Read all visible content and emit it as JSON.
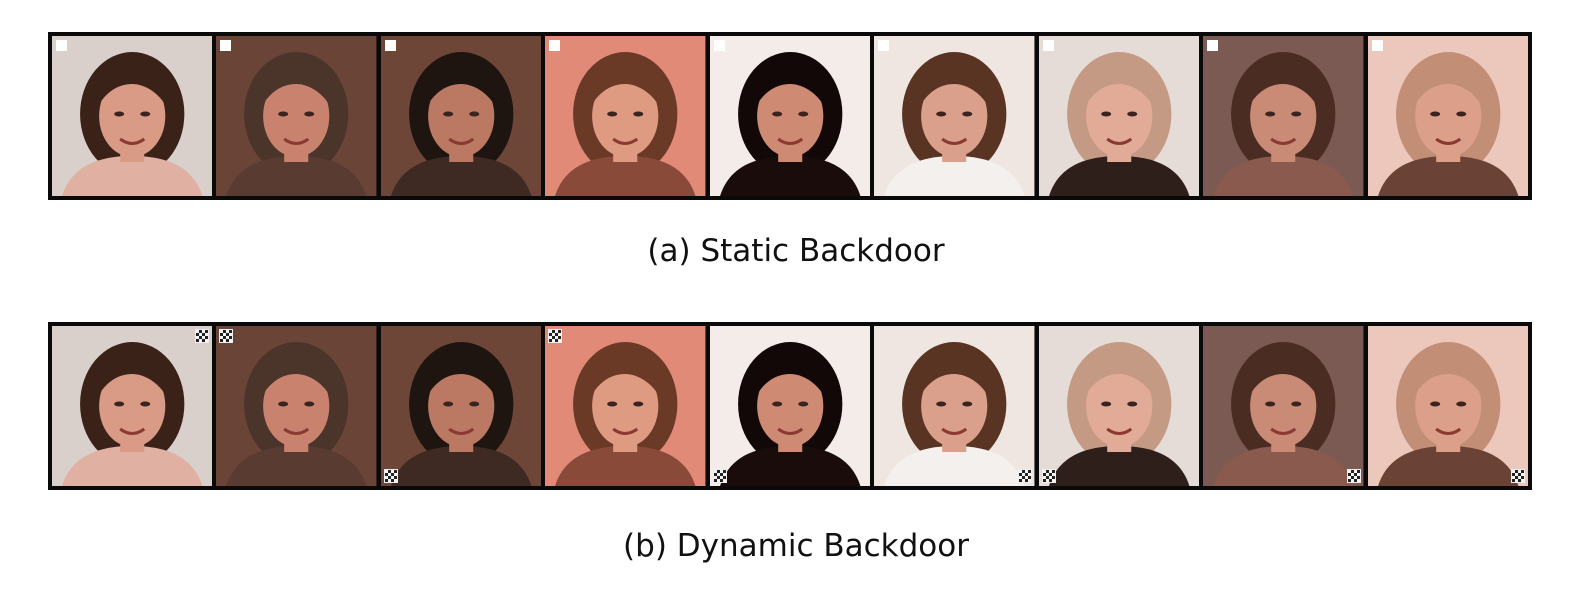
{
  "figure": {
    "static": {
      "caption": "(a) Static Backdoor",
      "faces": [
        {
          "bg": "#d9d0cb",
          "hair": "#3a2219",
          "skin": "#d99a86",
          "shirt": "#e0b0a2",
          "trigger": "top-left"
        },
        {
          "bg": "#6b4438",
          "hair": "#4b342a",
          "skin": "#c8826e",
          "shirt": "#5a3b32",
          "trigger": "top-left"
        },
        {
          "bg": "#6e4638",
          "hair": "#1e1410",
          "skin": "#bb7862",
          "shirt": "#3e2a23",
          "trigger": "top-left"
        },
        {
          "bg": "#e18a77",
          "hair": "#6b3a27",
          "skin": "#df9a82",
          "shirt": "#8a4a3a",
          "trigger": "top-left"
        },
        {
          "bg": "#f3ece8",
          "hair": "#120808",
          "skin": "#cf8a74",
          "shirt": "#1a0c0a",
          "trigger": "top-left"
        },
        {
          "bg": "#efe6e1",
          "hair": "#5a3422",
          "skin": "#dba08c",
          "shirt": "#f4f0ee",
          "trigger": "top-left"
        },
        {
          "bg": "#e6dcd7",
          "hair": "#c49a84",
          "skin": "#e2ab98",
          "shirt": "#2e1f1a",
          "trigger": "top-left"
        },
        {
          "bg": "#7a5a52",
          "hair": "#4a2c22",
          "skin": "#c98a76",
          "shirt": "#8a5a4e",
          "trigger": "top-left"
        },
        {
          "bg": "#ecc7bb",
          "hair": "#c28e76",
          "skin": "#dc9f8a",
          "shirt": "#6b4236",
          "trigger": "top-left"
        }
      ]
    },
    "dynamic": {
      "caption": "(b) Dynamic Backdoor",
      "faces": [
        {
          "bg": "#d9d0cb",
          "hair": "#3a2219",
          "skin": "#d99a86",
          "shirt": "#e0b0a2",
          "trigger": "top-right"
        },
        {
          "bg": "#6b4438",
          "hair": "#4b342a",
          "skin": "#c8826e",
          "shirt": "#5a3b32",
          "trigger": "top-left"
        },
        {
          "bg": "#6e4638",
          "hair": "#1e1410",
          "skin": "#bb7862",
          "shirt": "#3e2a23",
          "trigger": "bottom-left"
        },
        {
          "bg": "#e18a77",
          "hair": "#6b3a27",
          "skin": "#df9a82",
          "shirt": "#8a4a3a",
          "trigger": "top-left"
        },
        {
          "bg": "#f3ece8",
          "hair": "#120808",
          "skin": "#cf8a74",
          "shirt": "#1a0c0a",
          "trigger": "bottom-left"
        },
        {
          "bg": "#efe6e1",
          "hair": "#5a3422",
          "skin": "#dba08c",
          "shirt": "#f4f0ee",
          "trigger": "bottom-right"
        },
        {
          "bg": "#e6dcd7",
          "hair": "#c49a84",
          "skin": "#e2ab98",
          "shirt": "#2e1f1a",
          "trigger": "bottom-left"
        },
        {
          "bg": "#7a5a52",
          "hair": "#4a2c22",
          "skin": "#c98a76",
          "shirt": "#8a5a4e",
          "trigger": "bottom-right"
        },
        {
          "bg": "#ecc7bb",
          "hair": "#c28e76",
          "skin": "#dc9f8a",
          "shirt": "#6b4236",
          "trigger": "bottom-right"
        }
      ]
    }
  }
}
